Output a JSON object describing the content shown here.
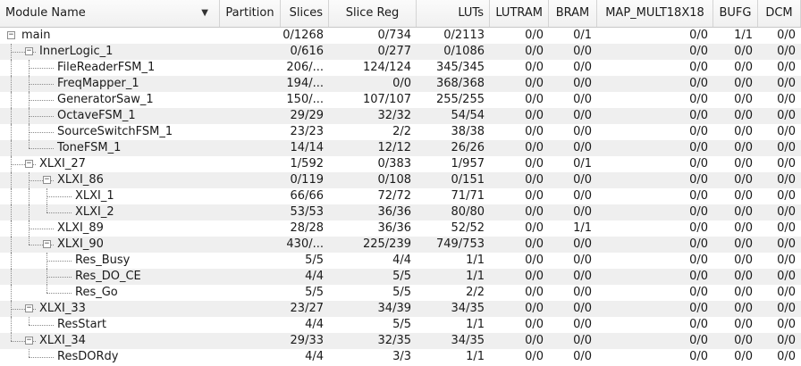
{
  "columns": [
    {
      "key": "name",
      "label": "Module Name",
      "align": "l"
    },
    {
      "key": "partition",
      "label": "Partition",
      "align": "c"
    },
    {
      "key": "slices",
      "label": "Slices",
      "align": "r"
    },
    {
      "key": "slicereg",
      "label": "Slice Reg",
      "align": "c"
    },
    {
      "key": "luts",
      "label": "LUTs",
      "align": "r"
    },
    {
      "key": "lutram",
      "label": "LUTRAM",
      "align": "r"
    },
    {
      "key": "bram",
      "label": "BRAM",
      "align": "c"
    },
    {
      "key": "mult",
      "label": "MAP_MULT18X18",
      "align": "c"
    },
    {
      "key": "bufg",
      "label": "BUFG",
      "align": "c"
    },
    {
      "key": "dcm",
      "label": "DCM",
      "align": "c"
    }
  ],
  "sort_icon": "chevron-down-icon",
  "rows": [
    {
      "name": "main",
      "depth": 0,
      "expander": "minus",
      "partition": "",
      "slices": "0/1268",
      "slicereg": "0/734",
      "luts": "0/2113",
      "lutram": "0/0",
      "bram": "0/1",
      "mult": "0/0",
      "bufg": "1/1",
      "dcm": "0/0"
    },
    {
      "name": "InnerLogic_1",
      "depth": 1,
      "expander": "minus",
      "partition": "",
      "slices": "0/616",
      "slicereg": "0/277",
      "luts": "0/1086",
      "lutram": "0/0",
      "bram": "0/0",
      "mult": "0/0",
      "bufg": "0/0",
      "dcm": "0/0"
    },
    {
      "name": "FileReaderFSM_1",
      "depth": 2,
      "expander": "",
      "partition": "",
      "slices": "206/...",
      "slicereg": "124/124",
      "luts": "345/345",
      "lutram": "0/0",
      "bram": "0/0",
      "mult": "0/0",
      "bufg": "0/0",
      "dcm": "0/0"
    },
    {
      "name": "FreqMapper_1",
      "depth": 2,
      "expander": "",
      "partition": "",
      "slices": "194/...",
      "slicereg": "0/0",
      "luts": "368/368",
      "lutram": "0/0",
      "bram": "0/0",
      "mult": "0/0",
      "bufg": "0/0",
      "dcm": "0/0"
    },
    {
      "name": "GeneratorSaw_1",
      "depth": 2,
      "expander": "",
      "partition": "",
      "slices": "150/...",
      "slicereg": "107/107",
      "luts": "255/255",
      "lutram": "0/0",
      "bram": "0/0",
      "mult": "0/0",
      "bufg": "0/0",
      "dcm": "0/0"
    },
    {
      "name": "OctaveFSM_1",
      "depth": 2,
      "expander": "",
      "partition": "",
      "slices": "29/29",
      "slicereg": "32/32",
      "luts": "54/54",
      "lutram": "0/0",
      "bram": "0/0",
      "mult": "0/0",
      "bufg": "0/0",
      "dcm": "0/0"
    },
    {
      "name": "SourceSwitchFSM_1",
      "depth": 2,
      "expander": "",
      "partition": "",
      "slices": "23/23",
      "slicereg": "2/2",
      "luts": "38/38",
      "lutram": "0/0",
      "bram": "0/0",
      "mult": "0/0",
      "bufg": "0/0",
      "dcm": "0/0"
    },
    {
      "name": "ToneFSM_1",
      "depth": 2,
      "expander": "",
      "partition": "",
      "slices": "14/14",
      "slicereg": "12/12",
      "luts": "26/26",
      "lutram": "0/0",
      "bram": "0/0",
      "mult": "0/0",
      "bufg": "0/0",
      "dcm": "0/0"
    },
    {
      "name": "XLXI_27",
      "depth": 1,
      "expander": "minus",
      "partition": "",
      "slices": "1/592",
      "slicereg": "0/383",
      "luts": "1/957",
      "lutram": "0/0",
      "bram": "0/1",
      "mult": "0/0",
      "bufg": "0/0",
      "dcm": "0/0"
    },
    {
      "name": "XLXI_86",
      "depth": 2,
      "expander": "minus",
      "partition": "",
      "slices": "0/119",
      "slicereg": "0/108",
      "luts": "0/151",
      "lutram": "0/0",
      "bram": "0/0",
      "mult": "0/0",
      "bufg": "0/0",
      "dcm": "0/0"
    },
    {
      "name": "XLXI_1",
      "depth": 3,
      "expander": "",
      "partition": "",
      "slices": "66/66",
      "slicereg": "72/72",
      "luts": "71/71",
      "lutram": "0/0",
      "bram": "0/0",
      "mult": "0/0",
      "bufg": "0/0",
      "dcm": "0/0"
    },
    {
      "name": "XLXI_2",
      "depth": 3,
      "expander": "",
      "partition": "",
      "slices": "53/53",
      "slicereg": "36/36",
      "luts": "80/80",
      "lutram": "0/0",
      "bram": "0/0",
      "mult": "0/0",
      "bufg": "0/0",
      "dcm": "0/0"
    },
    {
      "name": "XLXI_89",
      "depth": 2,
      "expander": "",
      "partition": "",
      "slices": "28/28",
      "slicereg": "36/36",
      "luts": "52/52",
      "lutram": "0/0",
      "bram": "1/1",
      "mult": "0/0",
      "bufg": "0/0",
      "dcm": "0/0"
    },
    {
      "name": "XLXI_90",
      "depth": 2,
      "expander": "minus",
      "partition": "",
      "slices": "430/...",
      "slicereg": "225/239",
      "luts": "749/753",
      "lutram": "0/0",
      "bram": "0/0",
      "mult": "0/0",
      "bufg": "0/0",
      "dcm": "0/0"
    },
    {
      "name": "Res_Busy",
      "depth": 3,
      "expander": "",
      "partition": "",
      "slices": "5/5",
      "slicereg": "4/4",
      "luts": "1/1",
      "lutram": "0/0",
      "bram": "0/0",
      "mult": "0/0",
      "bufg": "0/0",
      "dcm": "0/0"
    },
    {
      "name": "Res_DO_CE",
      "depth": 3,
      "expander": "",
      "partition": "",
      "slices": "4/4",
      "slicereg": "5/5",
      "luts": "1/1",
      "lutram": "0/0",
      "bram": "0/0",
      "mult": "0/0",
      "bufg": "0/0",
      "dcm": "0/0"
    },
    {
      "name": "Res_Go",
      "depth": 3,
      "expander": "",
      "partition": "",
      "slices": "5/5",
      "slicereg": "5/5",
      "luts": "2/2",
      "lutram": "0/0",
      "bram": "0/0",
      "mult": "0/0",
      "bufg": "0/0",
      "dcm": "0/0"
    },
    {
      "name": "XLXI_33",
      "depth": 1,
      "expander": "minus",
      "partition": "",
      "slices": "23/27",
      "slicereg": "34/39",
      "luts": "34/35",
      "lutram": "0/0",
      "bram": "0/0",
      "mult": "0/0",
      "bufg": "0/0",
      "dcm": "0/0"
    },
    {
      "name": "ResStart",
      "depth": 2,
      "expander": "",
      "partition": "",
      "slices": "4/4",
      "slicereg": "5/5",
      "luts": "1/1",
      "lutram": "0/0",
      "bram": "0/0",
      "mult": "0/0",
      "bufg": "0/0",
      "dcm": "0/0"
    },
    {
      "name": "XLXI_34",
      "depth": 1,
      "expander": "minus",
      "partition": "",
      "slices": "29/33",
      "slicereg": "32/35",
      "luts": "34/35",
      "lutram": "0/0",
      "bram": "0/0",
      "mult": "0/0",
      "bufg": "0/0",
      "dcm": "0/0"
    },
    {
      "name": "ResDORdy",
      "depth": 2,
      "expander": "",
      "partition": "",
      "slices": "4/4",
      "slicereg": "3/3",
      "luts": "1/1",
      "lutram": "0/0",
      "bram": "0/0",
      "mult": "0/0",
      "bufg": "0/0",
      "dcm": "0/0"
    }
  ]
}
